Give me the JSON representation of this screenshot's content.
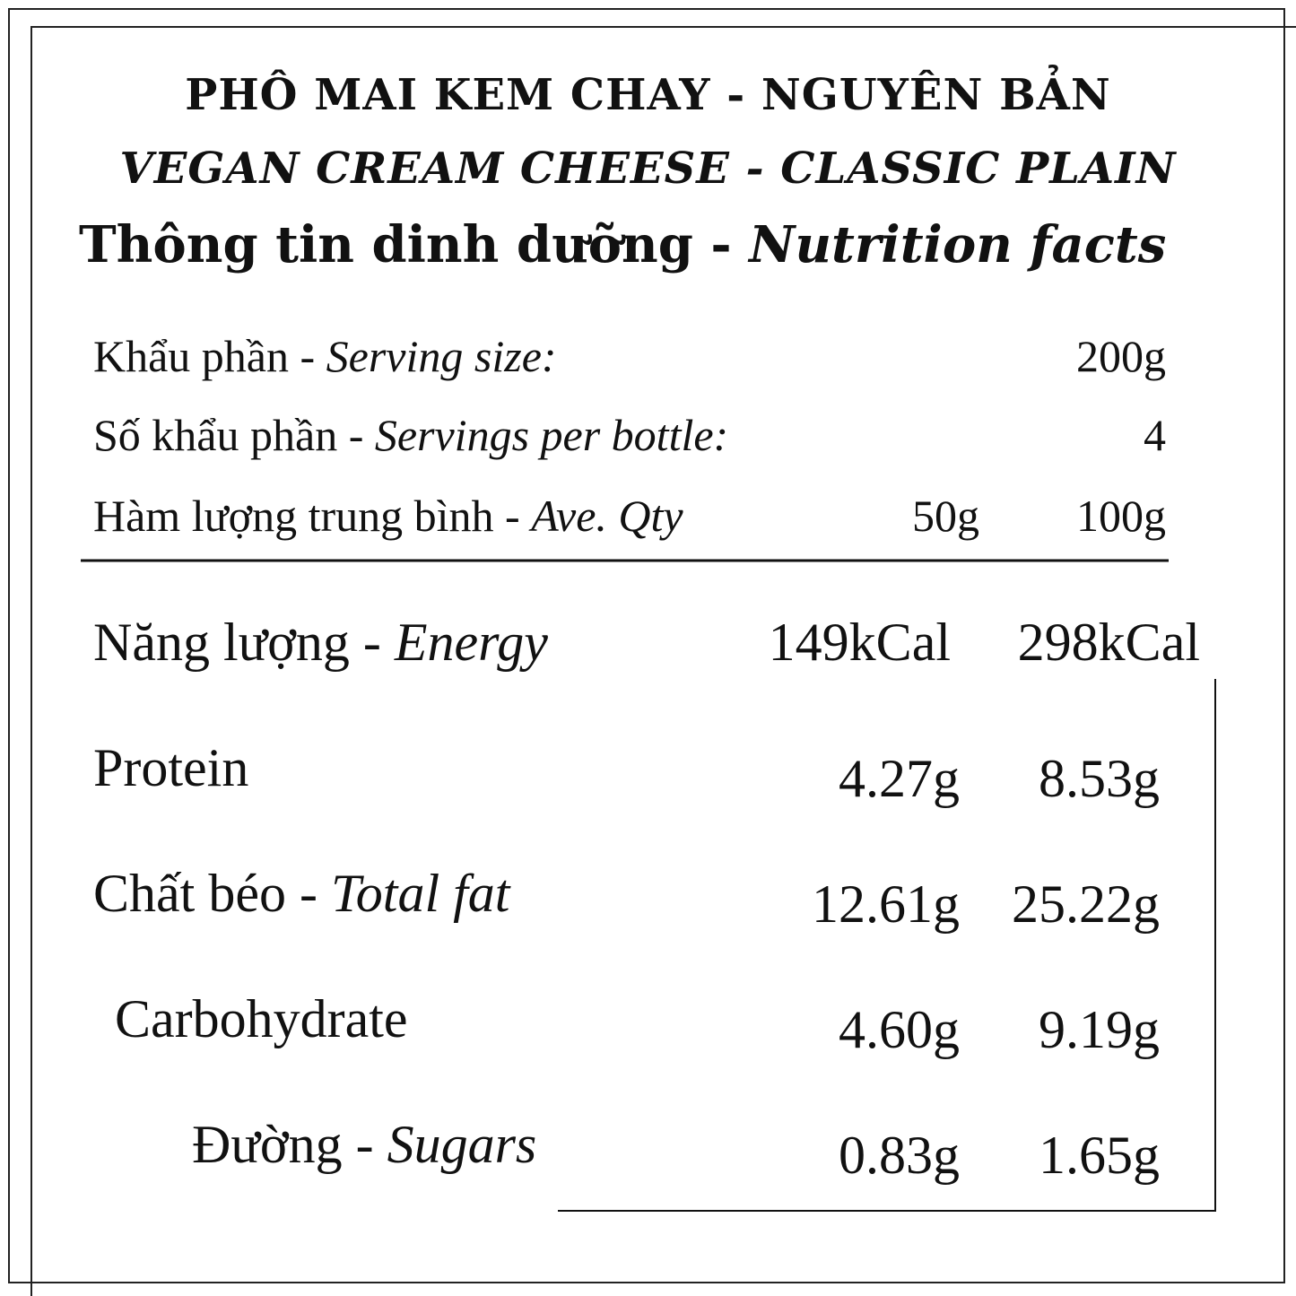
{
  "header": {
    "title_vi": "PHÔ MAI KEM CHAY - NGUYÊN BẢN",
    "title_en": "VEGAN CREAM CHEESE - CLASSIC PLAIN",
    "subtitle_vi": "Thông tin dinh dưỡng - ",
    "subtitle_en": "Nutrition facts"
  },
  "serving": [
    {
      "label_vi": "Khẩu phần - ",
      "label_en": "Serving size:",
      "value": "200g"
    },
    {
      "label_vi": "Số khẩu phần - ",
      "label_en": "Servings per bottle:",
      "value": "4"
    }
  ],
  "columns": {
    "label_vi": "Hàm lượng trung bình - ",
    "label_en": "Ave. Qty",
    "col1": "50g",
    "col2": "100g"
  },
  "nutrients": [
    {
      "label_vi": "Năng lượng - ",
      "label_en": "Energy",
      "col1": "149kCal",
      "col2": "298kCal"
    },
    {
      "label_vi": "Protein",
      "col1": "4.27g",
      "col2": "8.53g"
    },
    {
      "label_vi": "Chất béo - ",
      "label_en": "Total fat",
      "col1": "12.61g",
      "col2": "25.22g"
    },
    {
      "label_vi": "Carbohydrate",
      "col1": "4.60g",
      "col2": "9.19g"
    },
    {
      "label_vi": "Đường  - ",
      "label_en": "Sugars",
      "col1": "0.83g",
      "col2": "1.65g"
    }
  ]
}
